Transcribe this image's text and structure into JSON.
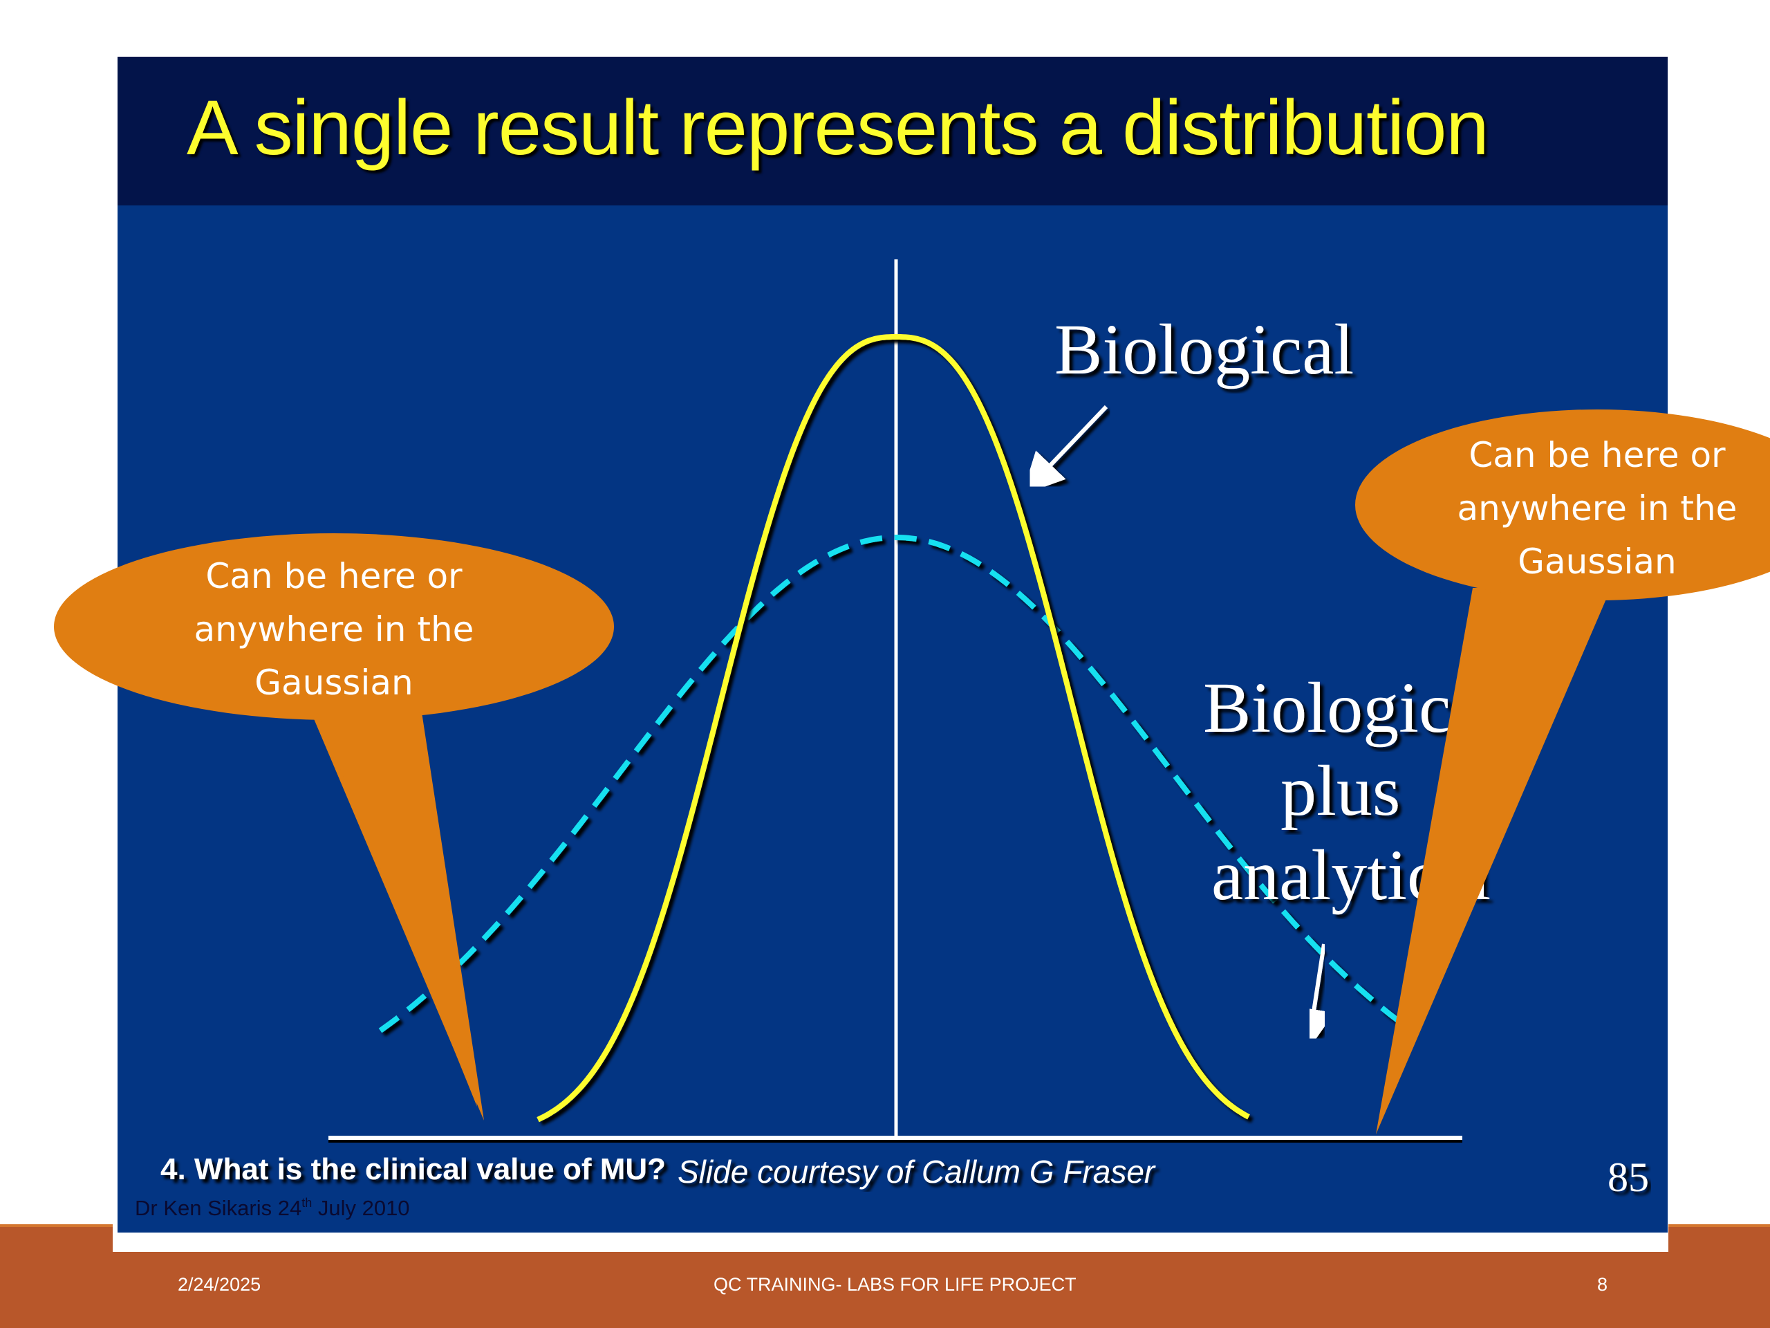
{
  "slide": {
    "title": "A single result represents a distribution",
    "inner_question": "4. What is the clinical value of MU?",
    "courtesy": "Slide courtesy of Callum G Fraser",
    "author_prefix": "Dr Ken Sikaris 24",
    "author_sup": "th",
    "author_suffix": " July 2010",
    "inner_page_number": "85"
  },
  "diagram": {
    "curves": [
      {
        "label": "Biological",
        "style": "solid",
        "color": "#fdfd2e"
      },
      {
        "label_lines": [
          "Biological",
          "plus",
          "analytical"
        ],
        "style": "dashed",
        "color": "#19e0f0"
      }
    ],
    "center_line_color": "#ffffff",
    "callouts": [
      {
        "lines": [
          "Can be here or",
          "anywhere in the",
          "Gaussian"
        ],
        "color": "#e07e12"
      },
      {
        "lines": [
          "Can be here or",
          "anywhere in the",
          "Gaussian"
        ],
        "color": "#e07e12"
      }
    ]
  },
  "footer": {
    "date": "2/24/2025",
    "center": "QC TRAINING- LABS FOR LIFE PROJECT",
    "page": "8"
  }
}
